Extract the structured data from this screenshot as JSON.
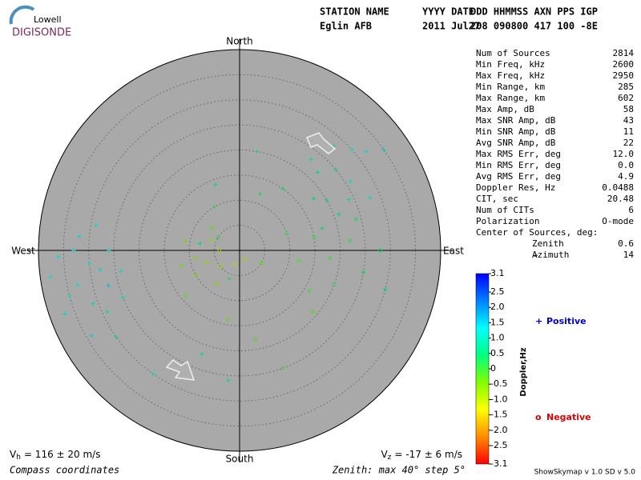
{
  "logo": {
    "line1": "Lowell",
    "line2": "DIGISONDE"
  },
  "header": [
    {
      "label": "STATION NAME",
      "value": "Eglin AFB"
    },
    {
      "label": "YYYY DATE",
      "value": "2011 Jul27"
    },
    {
      "label": "DDD HHMMSS AXN PPS IGP",
      "value": "208 090800 417 100 -8E"
    }
  ],
  "stats": [
    {
      "label": "Num of Sources",
      "value": "2814"
    },
    {
      "label": "Min Freq, kHz",
      "value": "2600"
    },
    {
      "label": "Max Freq, kHz",
      "value": "2950"
    },
    {
      "label": "Min Range, km",
      "value": "285"
    },
    {
      "label": "Max Range, km",
      "value": "602"
    },
    {
      "label": "Max Amp, dB",
      "value": "58"
    },
    {
      "label": "Max SNR Amp, dB",
      "value": "43"
    },
    {
      "label": "Min SNR Amp, dB",
      "value": "11"
    },
    {
      "label": "Avg SNR Amp, dB",
      "value": "22"
    },
    {
      "label": "Max RMS Err, deg",
      "value": "12.0"
    },
    {
      "label": "Min RMS Err, deg",
      "value": "0.0"
    },
    {
      "label": "Avg RMS Err, deg",
      "value": "4.9"
    },
    {
      "label": "Doppler Res, Hz",
      "value": "0.0488"
    },
    {
      "label": "CIT, sec",
      "value": "20.48"
    },
    {
      "label": "Num of CITs",
      "value": "6"
    },
    {
      "label": "Polarization",
      "value": "O-mode"
    }
  ],
  "center": {
    "title": "Center of Sources, deg:",
    "rows": [
      {
        "label": "Zenith",
        "value": "0.6"
      },
      {
        "label": "Azimuth",
        "value": "14"
      }
    ]
  },
  "chart_data": {
    "type": "polar-scatter",
    "directions": {
      "north": "North",
      "south": "South",
      "east": "East",
      "west": "West"
    },
    "rlim": [
      0,
      40
    ],
    "rticks": [
      5,
      10,
      15,
      20,
      25,
      30,
      35
    ],
    "plot_color": "#a9a9a9",
    "colorbar": {
      "label": "Doppler,Hz",
      "lim": [
        -3.1,
        3.1
      ],
      "colormap": [
        "#ff0000",
        "#ff8c00",
        "#ffff00",
        "#7fff00",
        "#00ff7f",
        "#00ffff",
        "#0080ff",
        "#0000ff"
      ],
      "ticks": [
        3.1,
        2.5,
        {
          "value": 2,
          "label": "2.0"
        },
        1.5,
        {
          "value": 1,
          "label": "1.0"
        },
        0.5,
        0,
        -0.5,
        {
          "value": -1,
          "label": "-1.0"
        },
        -1.5,
        {
          "value": -2,
          "label": "-2.0"
        },
        -2.5,
        -3.1
      ]
    },
    "series": [
      {
        "name": "Positive",
        "marker": "+",
        "color": "#0000cc",
        "zenith": [
          30,
          33,
          28,
          35,
          31,
          26,
          36,
          29,
          34,
          32,
          38,
          27,
          24,
          30,
          37,
          33,
          25,
          29,
          22,
          25,
          20,
          28,
          18,
          24,
          30,
          15,
          26,
          21,
          32,
          17,
          23,
          35,
          12,
          28,
          5,
          8,
          10,
          6,
          20,
          14,
          22,
          30,
          26
        ],
        "azimuth": [
          265,
          258,
          262,
          255,
          250,
          270,
          268,
          245,
          240,
          275,
          262,
          255,
          260,
          235,
          250,
          270,
          248,
          280,
          45,
          50,
          60,
          42,
          55,
          65,
          48,
          35,
          58,
          70,
          52,
          75,
          38,
          55,
          20,
          68,
          300,
          280,
          330,
          200,
          10,
          340,
          200,
          215,
          185
        ],
        "doppler": [
          1.3,
          1.2,
          1.4,
          1.1,
          1.0,
          1.5,
          1.2,
          0.9,
          1.0,
          1.4,
          1.3,
          1.6,
          1.2,
          0.8,
          1.1,
          1.5,
          1.0,
          1.3,
          0.7,
          0.9,
          0.6,
          1.0,
          0.5,
          0.8,
          1.1,
          0.4,
          1.2,
          0.7,
          1.3,
          0.5,
          0.9,
          1.4,
          0.3,
          1.0,
          0.2,
          0.4,
          0.1,
          0.3,
          0.2,
          0.5,
          0.9,
          1.0,
          0.6
        ]
      },
      {
        "name": "Negative",
        "marker": "o",
        "color": "#dd0000",
        "zenith": [
          7,
          5,
          9,
          4,
          10,
          6,
          3,
          8,
          12,
          11,
          2,
          5,
          14,
          7,
          15,
          18,
          22,
          25,
          20,
          28,
          12,
          16,
          30,
          10,
          19,
          24,
          18,
          25,
          14
        ],
        "azimuth": [
          250,
          230,
          260,
          270,
          240,
          290,
          200,
          215,
          255,
          280,
          150,
          120,
          230,
          310,
          80,
          95,
          85,
          100,
          110,
          90,
          100,
          120,
          105,
          70,
          130,
          75,
          170,
          160,
          190
        ],
        "doppler": [
          -0.7,
          -0.8,
          -0.6,
          -0.9,
          -0.5,
          -0.7,
          -1.0,
          -0.6,
          -0.4,
          -0.5,
          -0.8,
          -0.3,
          -0.3,
          -0.4,
          0.1,
          0.0,
          0.2,
          0.3,
          0.1,
          0.4,
          -0.1,
          0.0,
          0.5,
          0.0,
          -0.2,
          0.3,
          -0.2,
          0.0,
          -0.4
        ]
      }
    ],
    "vh": {
      "symbol": "V",
      "sub": "h",
      "text": "= 116 ± 20 m/s"
    },
    "vz": {
      "symbol": "V",
      "sub": "z",
      "text": "= -17 ± 6 m/s"
    },
    "footer_left": "Compass coordinates",
    "footer_right": "Zenith: max 40°  step 5°",
    "version": "ShowSkymap v 1.0   SD v 5.0"
  }
}
